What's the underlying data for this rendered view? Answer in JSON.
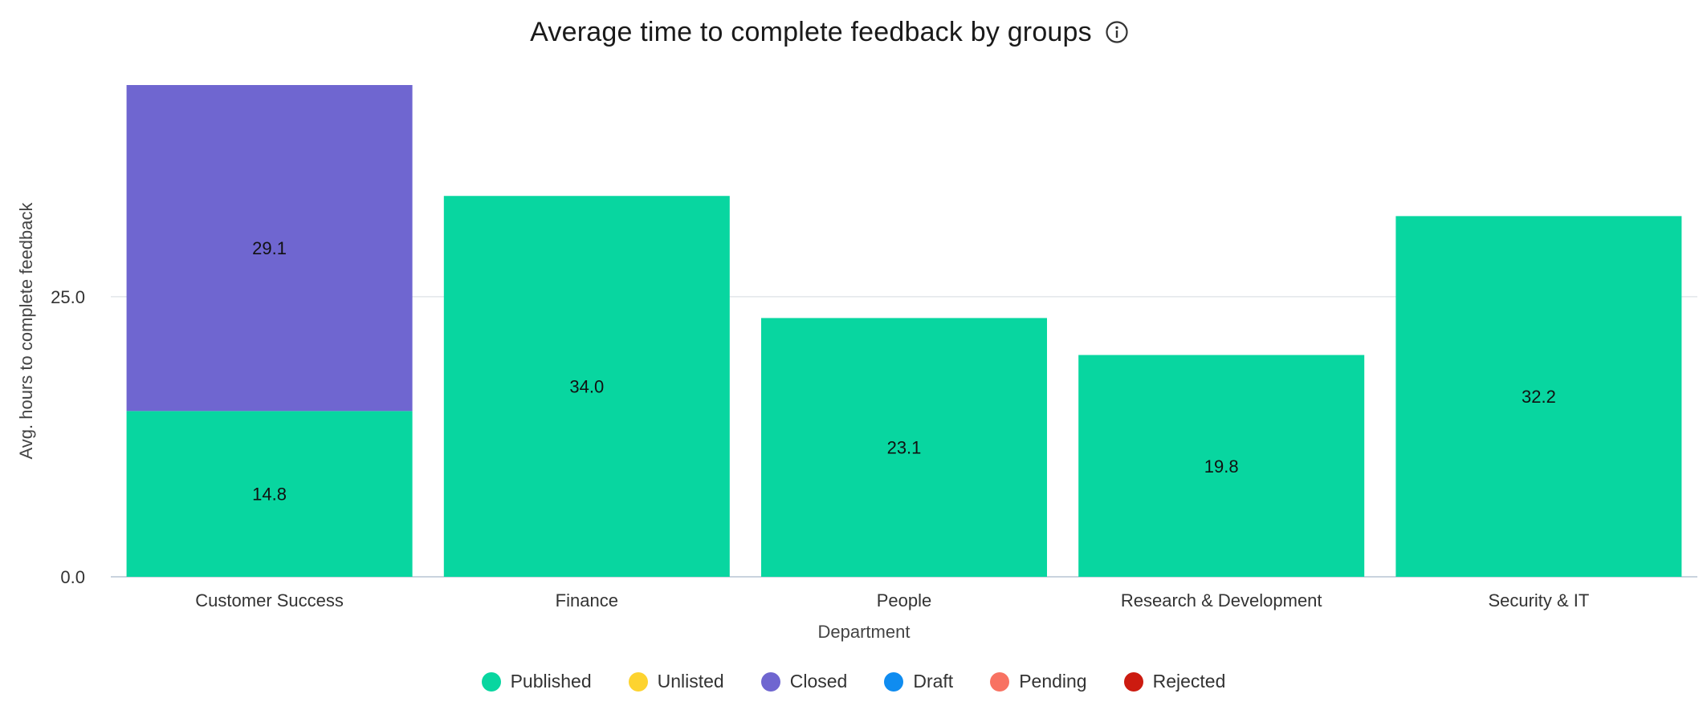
{
  "chart_data": {
    "type": "bar",
    "stacked": true,
    "title": "Average time to complete feedback by groups",
    "xlabel": "Department",
    "ylabel": "Avg. hours to complete feedback",
    "categories": [
      "Customer Success",
      "Finance",
      "People",
      "Research & Development",
      "Security & IT"
    ],
    "series": [
      {
        "name": "Published",
        "color": "#08d6a0",
        "values": [
          14.8,
          34.0,
          23.1,
          19.8,
          32.2
        ]
      },
      {
        "name": "Unlisted",
        "color": "#fdd32f",
        "values": [
          0,
          0,
          0,
          0,
          0
        ]
      },
      {
        "name": "Closed",
        "color": "#6f66d0",
        "values": [
          29.1,
          0,
          0,
          0,
          0
        ]
      },
      {
        "name": "Draft",
        "color": "#0f8cf0",
        "values": [
          0,
          0,
          0,
          0,
          0
        ]
      },
      {
        "name": "Pending",
        "color": "#f87262",
        "values": [
          0,
          0,
          0,
          0,
          0
        ]
      },
      {
        "name": "Rejected",
        "color": "#cc1b10",
        "values": [
          0,
          0,
          0,
          0,
          0
        ]
      }
    ],
    "yticks": [
      "0.0",
      "25.0"
    ],
    "ytick_values": [
      0,
      25
    ],
    "ylim": [
      0,
      43.9
    ],
    "grid": true,
    "legend_position": "bottom",
    "info_icon": "info-icon"
  }
}
